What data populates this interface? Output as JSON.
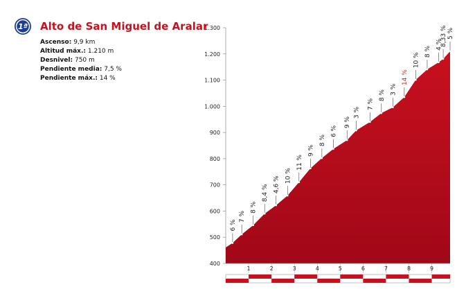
{
  "header": {
    "badge": "1ª",
    "title": "Alto de San Miguel de Aralar",
    "info": [
      {
        "label": "Ascenso:",
        "value": "9,9 km"
      },
      {
        "label": "Altitud máx.:",
        "value": "1.210 m"
      },
      {
        "label": "Desnivel:",
        "value": "750 m"
      },
      {
        "label": "Pendiente media:",
        "value": "7,5 %"
      },
      {
        "label": "Pendiente máx.:",
        "value": "14 %"
      }
    ]
  },
  "chart_data": {
    "type": "area",
    "x": [
      0,
      0.3,
      0.7,
      1.2,
      1.7,
      2.2,
      2.7,
      3.2,
      3.7,
      4.2,
      4.7,
      5.3,
      5.7,
      6.3,
      6.8,
      7.3,
      7.8,
      8.3,
      8.8,
      9.3,
      9.5,
      9.8
    ],
    "values": [
      461,
      478,
      511,
      546,
      590,
      622,
      659,
      710,
      763,
      802,
      837,
      871,
      908,
      940,
      974,
      996,
      1035,
      1101,
      1141,
      1168,
      1181,
      1210
    ],
    "gradient_labels": [
      null,
      "6 %",
      "7 %",
      "8 %",
      "8,4 %",
      "4,6 %",
      "10 %",
      "11 %",
      "9 %",
      "8 %",
      "6 %",
      "9 %",
      "3 %",
      "7 %",
      "8 %",
      "3 %",
      "14 %",
      "10 %",
      "8 %",
      "4 %",
      "8,33 %",
      "5 %"
    ],
    "max_gradient_index": 16,
    "max_gradient_color": "#e0201c",
    "color": "#c8101e",
    "xlim": [
      0,
      9.8
    ],
    "xticks": [
      1,
      2,
      3,
      4,
      5,
      6,
      7,
      8,
      9
    ],
    "ylim": [
      400,
      1300
    ],
    "yticks": [
      400,
      500,
      600,
      700,
      800,
      900,
      {
        "value": 1000,
        "label": "1.000"
      },
      {
        "value": 1100,
        "label": "1.100"
      },
      {
        "value": 1200,
        "label": "1.200"
      },
      {
        "value": 1300,
        "label": "1.300"
      }
    ]
  }
}
